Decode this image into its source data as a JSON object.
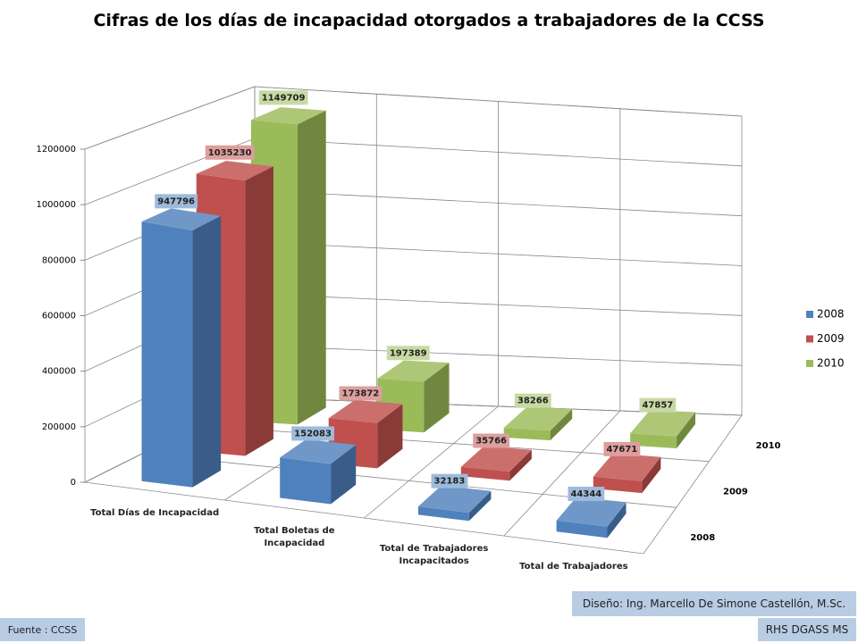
{
  "chart_data": {
    "type": "bar3d",
    "title": "Cifras de los días de incapacidad otorgados a trabajadores de la CCSS",
    "categories": [
      "Total Días de Incapacidad",
      "Total Boletas de Incapacidad",
      "Total de Trabajadores Incapacitados",
      "Total de Trabajadores"
    ],
    "series": [
      {
        "name": "2008",
        "color": "#4f81bd",
        "values": [
          947796,
          152083,
          32183,
          44344
        ]
      },
      {
        "name": "2009",
        "color": "#c0504d",
        "values": [
          1035230,
          173872,
          35766,
          47671
        ]
      },
      {
        "name": "2010",
        "color": "#9bbb59",
        "values": [
          1149709,
          197389,
          38266,
          47857
        ]
      }
    ],
    "ylim": [
      0,
      1200000
    ],
    "yticks": [
      0,
      200000,
      400000,
      600000,
      800000,
      1000000,
      1200000
    ],
    "grid": true,
    "legend": "right"
  },
  "credits": {
    "design": "Diseño: Ing. Marcello De Simone Castellón, M.Sc.",
    "source": "Fuente : CCSS",
    "org": "RHS DGASS MS"
  }
}
